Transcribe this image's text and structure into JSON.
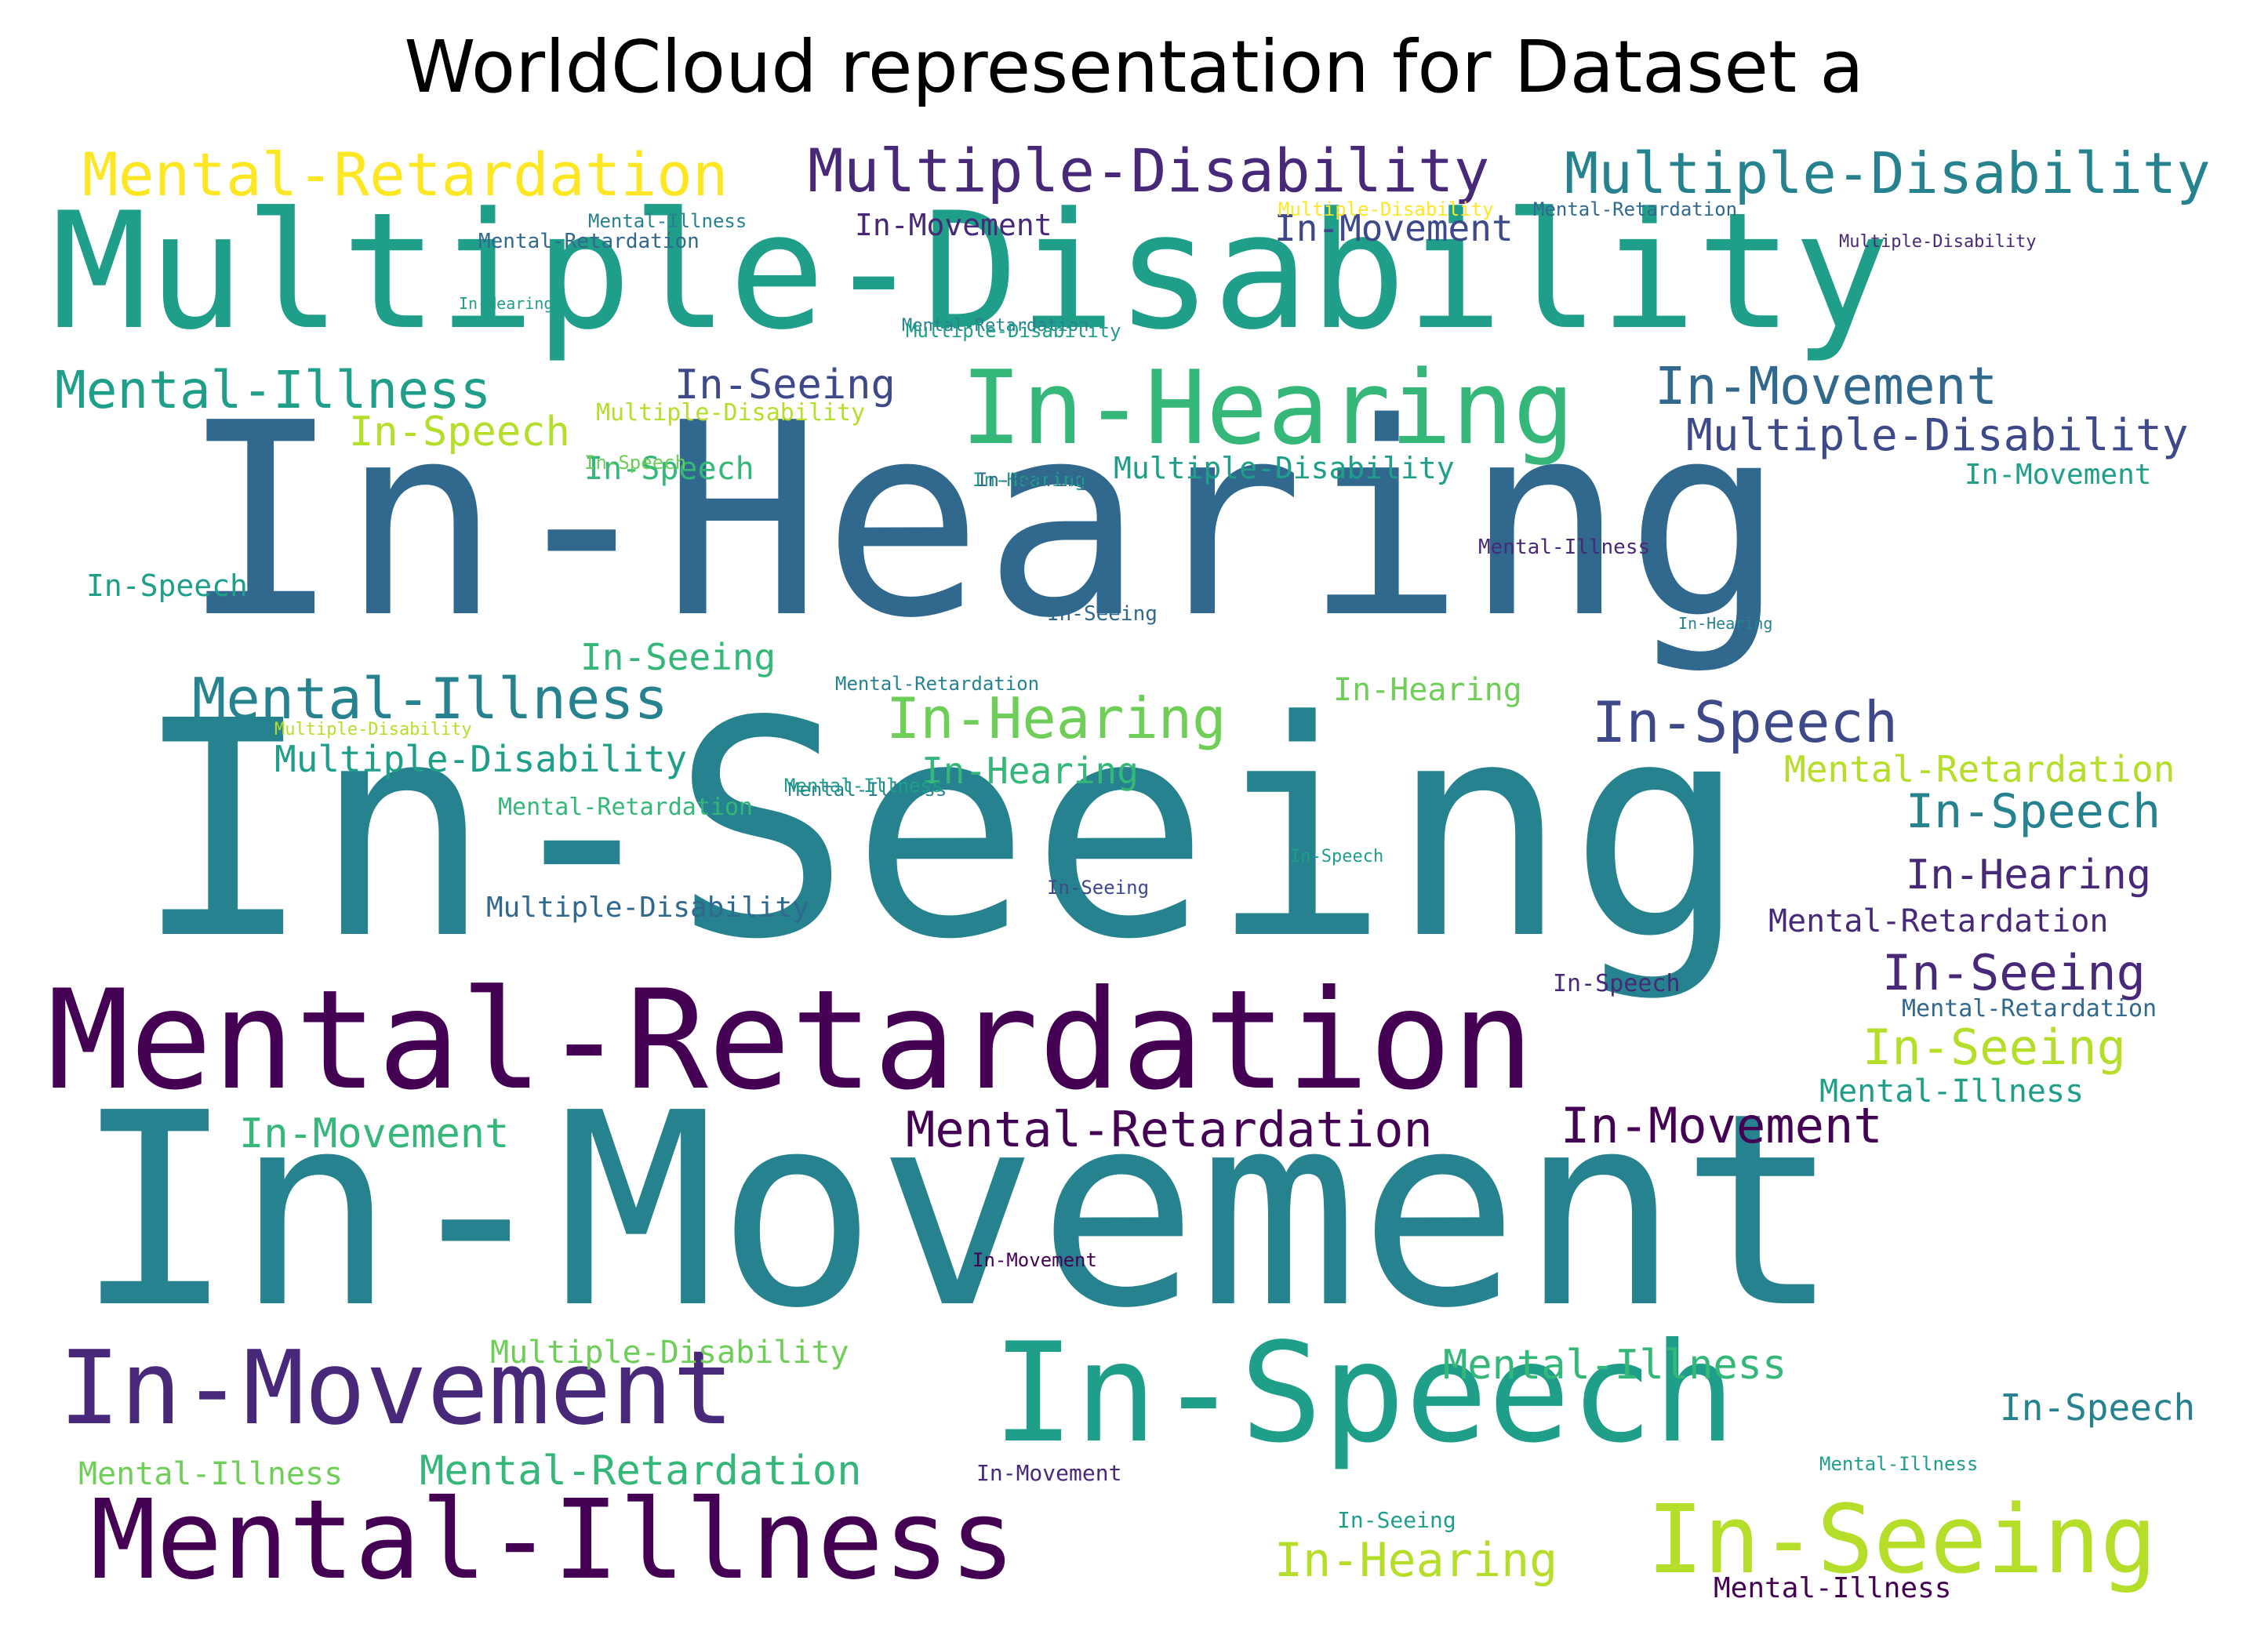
{
  "title": "WorldCloud representation for Dataset a",
  "palette": {
    "p0": "#440154",
    "p1": "#482878",
    "p2": "#3e4989",
    "p3": "#31688e",
    "p4": "#26828e",
    "p5": "#1f9e89",
    "p6": "#35b779",
    "p7": "#6ece58",
    "p8": "#b5de2b",
    "p9": "#fde725"
  },
  "words": [
    {
      "text": "In-Movement",
      "color": "p4"
    },
    {
      "text": "In-Seeing",
      "color": "p4"
    },
    {
      "text": "In-Hearing",
      "color": "p3"
    },
    {
      "text": "Multiple-Disability",
      "color": "p5"
    },
    {
      "text": "Mental-Retardation",
      "color": "p0"
    },
    {
      "text": "In-Speech",
      "color": "p5"
    },
    {
      "text": "Mental-Illness",
      "color": "p0"
    },
    {
      "text": "In-Movement",
      "color": "p1"
    },
    {
      "text": "In-Hearing",
      "color": "p6"
    },
    {
      "text": "In-Seeing",
      "color": "p8"
    },
    {
      "text": "Mental-Retardation",
      "color": "p9"
    },
    {
      "text": "Multiple-Disability",
      "color": "p1"
    },
    {
      "text": "Multiple-Disability",
      "color": "p4"
    },
    {
      "text": "Mental-Illness",
      "color": "p5"
    },
    {
      "text": "In-Movement",
      "color": "p3"
    },
    {
      "text": "Multiple-Disability",
      "color": "p2"
    },
    {
      "text": "Mental-Illness",
      "color": "p4"
    },
    {
      "text": "In-Hearing",
      "color": "p7"
    },
    {
      "text": "In-Speech",
      "color": "p2"
    },
    {
      "text": "Mental-Retardation",
      "color": "p0"
    },
    {
      "text": "In-Movement",
      "color": "p0"
    },
    {
      "text": "In-Speech",
      "color": "p8"
    },
    {
      "text": "In-Seeing",
      "color": "p2"
    },
    {
      "text": "Multiple-Disability",
      "color": "p5"
    },
    {
      "text": "Mental-Illness",
      "color": "p6"
    },
    {
      "text": "In-Speech",
      "color": "p4"
    },
    {
      "text": "In-Hearing",
      "color": "p8"
    },
    {
      "text": "In-Seeing",
      "color": "p8"
    },
    {
      "text": "In-Movement",
      "color": "p6"
    },
    {
      "text": "Mental-Retardation",
      "color": "p6"
    },
    {
      "text": "In-Hearing",
      "color": "p1"
    },
    {
      "text": "In-Seeing",
      "color": "p1"
    },
    {
      "text": "In-Movement",
      "color": "p2"
    },
    {
      "text": "In-Speech",
      "color": "p6"
    },
    {
      "text": "In-Speech",
      "color": "p5"
    },
    {
      "text": "Mental-Retardation",
      "color": "p8"
    },
    {
      "text": "Mental-Retardation",
      "color": "p1"
    },
    {
      "text": "Multiple-Disability",
      "color": "p5"
    },
    {
      "text": "Mental-Illness",
      "color": "p5"
    },
    {
      "text": "In-Movement",
      "color": "p1"
    },
    {
      "text": "In-Seeing",
      "color": "p6"
    },
    {
      "text": "Multiple-Disability",
      "color": "p7"
    },
    {
      "text": "In-Speech",
      "color": "p4"
    },
    {
      "text": "Multiple-Disability",
      "color": "p8"
    },
    {
      "text": "In-Speech",
      "color": "p7"
    },
    {
      "text": "In-Hearing",
      "color": "p6"
    },
    {
      "text": "In-Movement",
      "color": "p5"
    },
    {
      "text": "Mental-Illness",
      "color": "p5"
    },
    {
      "text": "Mental-Illness",
      "color": "p7"
    },
    {
      "text": "Mental-Illness",
      "color": "p0"
    },
    {
      "text": "In-Hearing",
      "color": "p7"
    },
    {
      "text": "Mental-Illness",
      "color": "p1"
    },
    {
      "text": "In-Seeing",
      "color": "p5"
    },
    {
      "text": "Mental-Retardation",
      "color": "p4"
    },
    {
      "text": "Multiple-Disability",
      "color": "p3"
    },
    {
      "text": "Mental-Retardation",
      "color": "p3"
    },
    {
      "text": "Multiple-Disability",
      "color": "p8"
    },
    {
      "text": "Mental-Retardation",
      "color": "p3"
    },
    {
      "text": "Mental-Illness",
      "color": "p4"
    },
    {
      "text": "In-Seeing",
      "color": "p3"
    },
    {
      "text": "In-Speech",
      "color": "p1"
    },
    {
      "text": "In-Hearing",
      "color": "p5"
    },
    {
      "text": "Mental-Retardation",
      "color": "p6"
    },
    {
      "text": "Multiple-Disability",
      "color": "p5"
    },
    {
      "text": "Mental-Retardation",
      "color": "p4"
    },
    {
      "text": "Mental-Retardation",
      "color": "p3"
    },
    {
      "text": "Multiple-Disability",
      "color": "p1"
    },
    {
      "text": "Multiple-Disability",
      "color": "p9"
    },
    {
      "text": "Mental-Illness",
      "color": "p4"
    },
    {
      "text": "Mental-Illness",
      "color": "p5"
    },
    {
      "text": "In-Movement",
      "color": "p0"
    },
    {
      "text": "In-Hearing",
      "color": "p5"
    },
    {
      "text": "In-Hearing",
      "color": "p3"
    },
    {
      "text": "In-Movement",
      "color": "p1"
    },
    {
      "text": "In-Speech",
      "color": "p5"
    },
    {
      "text": "In-Hearing",
      "color": "p4"
    },
    {
      "text": "In-Seeing",
      "color": "p2"
    }
  ]
}
